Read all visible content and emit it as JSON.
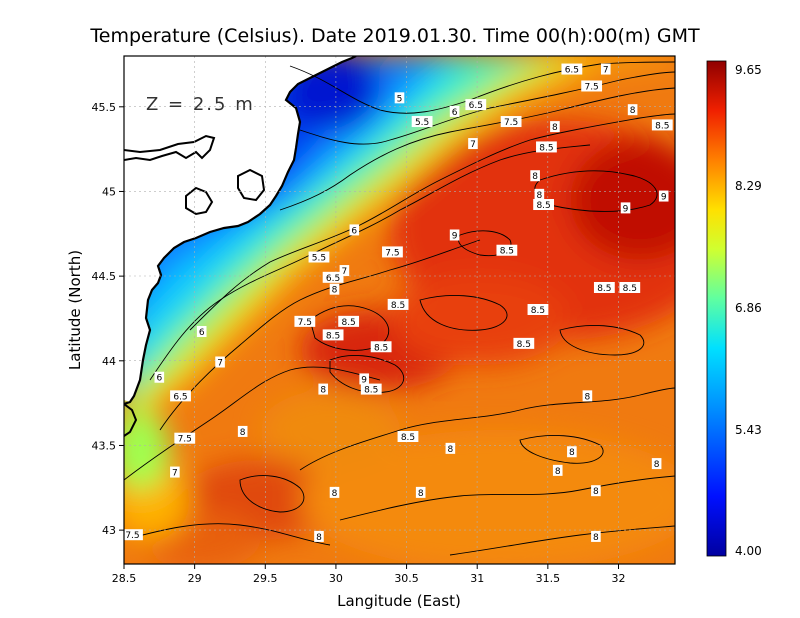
{
  "chart_data": {
    "type": "heatmap",
    "title": "Temperature (Celsius). Date 2019.01.30. Time 00(h):00(m)  GMT",
    "xlabel": "Langitude (East)",
    "ylabel": "Latitude (North)",
    "annotation": "Z = 2.5 m",
    "xlim": [
      28.5,
      32.4
    ],
    "ylim": [
      42.8,
      45.8
    ],
    "x_ticks": [
      "28.5",
      "29",
      "29.5",
      "30",
      "30.5",
      "31",
      "31.5",
      "32"
    ],
    "y_ticks": [
      "43",
      "43.5",
      "44",
      "44.5",
      "45",
      "45.5"
    ],
    "colorbar": {
      "min": 4.0,
      "max": 9.65,
      "tick_labels": [
        "9.65",
        "8.29",
        "6.86",
        "5.43",
        "4.00"
      ]
    },
    "grid": true,
    "contour_labels": [
      {
        "text": "6.5",
        "x": 31.67,
        "y": 45.72
      },
      {
        "text": "7",
        "x": 31.91,
        "y": 45.72
      },
      {
        "text": "7.5",
        "x": 31.81,
        "y": 45.62
      },
      {
        "text": "5",
        "x": 30.45,
        "y": 45.55
      },
      {
        "text": "6.5",
        "x": 30.99,
        "y": 45.51
      },
      {
        "text": "6",
        "x": 30.84,
        "y": 45.47
      },
      {
        "text": "7.5",
        "x": 31.24,
        "y": 45.41
      },
      {
        "text": "5.5",
        "x": 30.61,
        "y": 45.41
      },
      {
        "text": "8",
        "x": 32.1,
        "y": 45.48
      },
      {
        "text": "8.5",
        "x": 32.31,
        "y": 45.39
      },
      {
        "text": "8",
        "x": 31.55,
        "y": 45.38
      },
      {
        "text": "7",
        "x": 30.97,
        "y": 45.28
      },
      {
        "text": "8.5",
        "x": 31.49,
        "y": 45.26
      },
      {
        "text": "8",
        "x": 31.41,
        "y": 45.09
      },
      {
        "text": "8",
        "x": 31.44,
        "y": 44.98
      },
      {
        "text": "8.5",
        "x": 31.47,
        "y": 44.92
      },
      {
        "text": "9",
        "x": 32.32,
        "y": 44.97
      },
      {
        "text": "9",
        "x": 32.05,
        "y": 44.9
      },
      {
        "text": "6",
        "x": 30.13,
        "y": 44.77
      },
      {
        "text": "9",
        "x": 30.84,
        "y": 44.74
      },
      {
        "text": "7.5",
        "x": 30.4,
        "y": 44.64
      },
      {
        "text": "5.5",
        "x": 29.88,
        "y": 44.61
      },
      {
        "text": "8.5",
        "x": 31.21,
        "y": 44.65
      },
      {
        "text": "7",
        "x": 30.06,
        "y": 44.53
      },
      {
        "text": "6.5",
        "x": 29.98,
        "y": 44.49
      },
      {
        "text": "8",
        "x": 29.99,
        "y": 44.42
      },
      {
        "text": "8.5",
        "x": 31.9,
        "y": 44.43
      },
      {
        "text": "8.5",
        "x": 32.08,
        "y": 44.43
      },
      {
        "text": "8.5",
        "x": 30.44,
        "y": 44.33
      },
      {
        "text": "8.5",
        "x": 31.43,
        "y": 44.3
      },
      {
        "text": "7.5",
        "x": 29.78,
        "y": 44.23
      },
      {
        "text": "8.5",
        "x": 30.09,
        "y": 44.23
      },
      {
        "text": "6",
        "x": 29.05,
        "y": 44.17
      },
      {
        "text": "8.5",
        "x": 29.98,
        "y": 44.15
      },
      {
        "text": "8.5",
        "x": 30.32,
        "y": 44.08
      },
      {
        "text": "8.5",
        "x": 31.33,
        "y": 44.1
      },
      {
        "text": "7",
        "x": 29.18,
        "y": 43.99
      },
      {
        "text": "6",
        "x": 28.75,
        "y": 43.9
      },
      {
        "text": "9",
        "x": 30.2,
        "y": 43.89
      },
      {
        "text": "8",
        "x": 29.91,
        "y": 43.83
      },
      {
        "text": "8.5",
        "x": 30.25,
        "y": 43.83
      },
      {
        "text": "6.5",
        "x": 28.9,
        "y": 43.79
      },
      {
        "text": "8",
        "x": 31.78,
        "y": 43.79
      },
      {
        "text": "8",
        "x": 29.34,
        "y": 43.58
      },
      {
        "text": "8.5",
        "x": 30.51,
        "y": 43.55
      },
      {
        "text": "7.5",
        "x": 28.93,
        "y": 43.54
      },
      {
        "text": "8",
        "x": 30.81,
        "y": 43.48
      },
      {
        "text": "8",
        "x": 31.67,
        "y": 43.46
      },
      {
        "text": "8",
        "x": 32.27,
        "y": 43.39
      },
      {
        "text": "7",
        "x": 28.86,
        "y": 43.34
      },
      {
        "text": "8",
        "x": 31.57,
        "y": 43.35
      },
      {
        "text": "8",
        "x": 29.99,
        "y": 43.22
      },
      {
        "text": "8",
        "x": 30.6,
        "y": 43.22
      },
      {
        "text": "8",
        "x": 31.84,
        "y": 43.23
      },
      {
        "text": "7.5",
        "x": 28.56,
        "y": 42.97
      },
      {
        "text": "8",
        "x": 29.88,
        "y": 42.96
      },
      {
        "text": "8",
        "x": 31.84,
        "y": 42.96
      }
    ]
  }
}
